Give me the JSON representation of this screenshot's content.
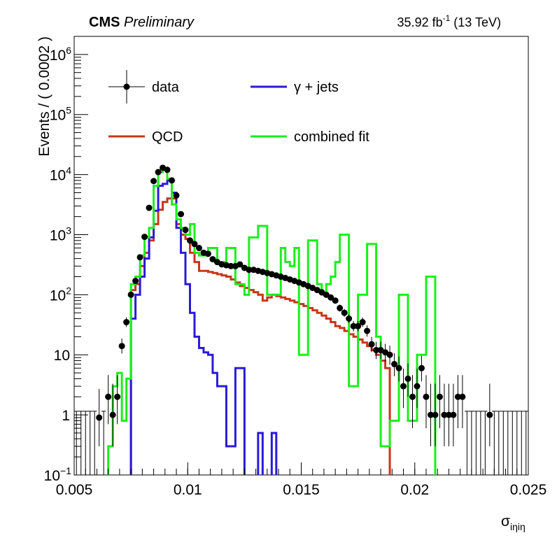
{
  "header": {
    "experiment": "CMS",
    "status": "Preliminary",
    "luminosity": "35.92 fb",
    "lumi_sup": "-1",
    "energy": "(13 TeV)"
  },
  "chart_data": {
    "type": "line",
    "title": "",
    "xlabel": "σ_iηiη",
    "xlabel_main": "σ",
    "xlabel_sub": "iηiη",
    "ylabel": "Events / ( 0.0002 )",
    "xlim": [
      0.005,
      0.025
    ],
    "ylim": [
      0.1,
      2000000
    ],
    "log_y": true,
    "grid": false,
    "legend_position": "top-left",
    "x_ticks": [
      "0.005",
      "0.01",
      "0.015",
      "0.02",
      "0.025"
    ],
    "y_ticks": [
      {
        "base": "10",
        "exp": "−1",
        "value": 0.1
      },
      {
        "base": "1",
        "exp": "",
        "value": 1
      },
      {
        "base": "10",
        "exp": "",
        "value": 10
      },
      {
        "base": "10",
        "exp": "2",
        "value": 100
      },
      {
        "base": "10",
        "exp": "3",
        "value": 1000
      },
      {
        "base": "10",
        "exp": "4",
        "value": 10000
      },
      {
        "base": "10",
        "exp": "5",
        "value": 100000
      },
      {
        "base": "10",
        "exp": "6",
        "value": 1000000
      }
    ],
    "legend": [
      {
        "label": "data",
        "kind": "marker",
        "color": "#000000"
      },
      {
        "label": "γ + jets",
        "kind": "line",
        "color": "#2a1ad6"
      },
      {
        "label": "QCD",
        "kind": "line",
        "color": "#c8361a"
      },
      {
        "label": "combined fit",
        "kind": "line",
        "color": "#19f019"
      }
    ],
    "bin_width": 0.0002,
    "bin_start": 0.005,
    "data_series": {
      "name": "data",
      "x": [
        0.0061,
        0.0065,
        0.0067,
        0.0069,
        0.0071,
        0.0073,
        0.0075,
        0.0077,
        0.0079,
        0.0081,
        0.0083,
        0.0085,
        0.0087,
        0.0089,
        0.0091,
        0.0093,
        0.0095,
        0.0097,
        0.0099,
        0.0101,
        0.0103,
        0.0105,
        0.0107,
        0.0109,
        0.0111,
        0.0113,
        0.0115,
        0.0117,
        0.0119,
        0.0121,
        0.0123,
        0.0125,
        0.0127,
        0.0129,
        0.0131,
        0.0133,
        0.0135,
        0.0137,
        0.0139,
        0.0141,
        0.0143,
        0.0145,
        0.0147,
        0.0149,
        0.0151,
        0.0153,
        0.0155,
        0.0157,
        0.0159,
        0.0161,
        0.0163,
        0.0165,
        0.0167,
        0.0169,
        0.0171,
        0.0173,
        0.0175,
        0.0177,
        0.0179,
        0.0181,
        0.0183,
        0.0185,
        0.0187,
        0.0189,
        0.0191,
        0.0193,
        0.0195,
        0.0197,
        0.0199,
        0.0201,
        0.0203,
        0.0205,
        0.0207,
        0.0209,
        0.0211,
        0.0213,
        0.0215,
        0.0217,
        0.0219,
        0.0221,
        0.0233
      ],
      "y": [
        0.9,
        2,
        1,
        2,
        14,
        35,
        100,
        170,
        420,
        920,
        2800,
        7800,
        11000,
        13000,
        12000,
        8000,
        4500,
        2200,
        1200,
        800,
        700,
        600,
        500,
        480,
        390,
        350,
        320,
        310,
        300,
        300,
        320,
        280,
        260,
        260,
        250,
        240,
        230,
        220,
        210,
        200,
        190,
        180,
        170,
        160,
        150,
        140,
        130,
        120,
        110,
        100,
        90,
        80,
        60,
        50,
        40,
        30,
        30,
        35,
        25,
        15,
        12,
        12,
        11,
        10,
        7,
        6,
        3,
        4,
        2,
        3,
        6,
        2,
        1,
        1,
        2,
        1,
        1,
        1,
        2,
        2,
        1
      ],
      "err_lo": [
        0.6,
        1.3,
        0.7,
        1.3,
        3.5,
        6,
        10,
        13,
        20,
        30,
        53,
        88,
        105,
        114,
        110,
        89,
        67,
        47,
        35,
        28,
        26,
        24,
        22,
        22,
        20,
        19,
        18,
        18,
        17,
        17,
        18,
        17,
        16,
        16,
        16,
        15,
        15,
        15,
        14,
        14,
        14,
        13,
        13,
        13,
        12,
        12,
        11,
        11,
        10,
        10,
        9.5,
        9,
        7.7,
        7,
        6.3,
        5.5,
        5.5,
        5.9,
        5,
        3.9,
        3.5,
        3.5,
        3.3,
        3.2,
        2.6,
        2.4,
        1.7,
        2,
        1.4,
        1.7,
        2.4,
        1.4,
        0.7,
        0.7,
        1.4,
        0.7,
        0.7,
        0.7,
        1.4,
        1.4,
        0.7
      ],
      "err_hi": [
        1.8,
        2.6,
        2.3,
        2.6,
        4.6,
        7,
        11,
        14,
        21,
        31,
        54,
        89,
        106,
        115,
        111,
        90,
        68,
        48,
        36,
        29,
        27,
        25,
        23,
        23,
        21,
        20,
        19,
        19,
        18,
        18,
        19,
        18,
        17,
        17,
        17,
        16,
        16,
        16,
        15,
        15,
        15,
        14,
        14,
        14,
        13,
        13,
        12,
        12,
        11,
        11,
        10.5,
        10,
        8.7,
        8,
        7.3,
        6.5,
        6.5,
        6.9,
        6,
        4.9,
        4.5,
        4.5,
        4.3,
        4.2,
        3.6,
        3.4,
        2.9,
        3.2,
        2.6,
        2.9,
        3.6,
        2.6,
        2.3,
        2.3,
        2.6,
        2.3,
        2.3,
        2.3,
        2.6,
        2.6,
        2.3
      ]
    },
    "empty_bins_x": [
      0.0051,
      0.0053,
      0.0055,
      0.0057,
      0.0059,
      0.0063,
      0.0223,
      0.0225,
      0.0227,
      0.0229,
      0.0231,
      0.0235,
      0.0237,
      0.0239,
      0.0241,
      0.0243,
      0.0245,
      0.0247,
      0.0249
    ],
    "empty_bin_err_hi": 1.15,
    "series": [
      {
        "name": "QCD",
        "color": "#c8361a",
        "values": [
          0,
          0,
          0,
          0,
          0,
          0,
          0,
          0,
          0,
          0,
          0,
          0,
          0,
          0,
          0,
          0,
          0,
          0,
          0,
          0,
          0,
          0,
          0,
          0,
          0,
          0,
          0,
          0,
          0,
          0,
          0,
          0,
          0,
          0,
          0,
          0,
          0,
          0,
          0,
          0,
          0,
          0,
          0,
          0,
          0,
          0,
          0,
          0,
          0,
          0,
          0,
          0,
          0,
          0,
          0,
          0,
          0,
          0,
          0,
          0,
          0,
          0,
          0,
          0,
          0,
          0,
          0,
          0,
          0,
          0,
          0,
          0,
          0,
          0,
          0,
          0,
          0,
          0,
          0,
          0,
          0,
          0,
          0,
          0,
          0,
          0,
          0,
          0,
          0,
          0,
          0,
          0,
          0,
          0,
          0,
          0,
          0,
          0,
          0,
          0
        ],
        "values_sparse": {
          "from": 0.0075,
          "step": 0.0002,
          "y": [
            120,
            150,
            300,
            500,
            800,
            1500,
            2600,
            3500,
            4000,
            4000,
            1500,
            1000,
            850,
            500,
            350,
            250,
            250,
            240,
            230,
            220,
            210,
            200,
            180,
            160,
            140,
            130,
            120,
            110,
            100,
            80,
            90,
            100,
            95,
            90,
            85,
            80,
            75,
            70,
            65,
            60,
            55,
            50,
            45,
            40,
            35,
            30,
            28,
            25,
            22,
            20,
            18,
            16,
            14,
            12,
            10,
            8,
            6
          ]
        }
      },
      {
        "name": "γ + jets",
        "color": "#2a1ad6",
        "values_sparse": {
          "from": 0.0075,
          "step": 0.0002,
          "y": [
            40,
            100,
            200,
            400,
            900,
            2500,
            6500,
            7000,
            8000,
            5000,
            1300,
            500,
            150,
            50,
            20,
            13,
            11,
            10,
            5,
            3,
            3,
            0.3,
            0.3,
            6,
            6,
            0,
            0,
            0,
            0.5,
            0,
            0,
            0.5,
            0,
            0,
            0,
            0
          ]
        }
      },
      {
        "name": "combined fit",
        "color": "#19f019",
        "values_sparse": {
          "from": 0.0065,
          "step": 0.0002,
          "y": [
            0.3,
            3,
            5,
            0.8,
            4,
            150,
            200,
            450,
            900,
            1300,
            6500,
            11000,
            12000,
            8500,
            3200,
            1800,
            1300,
            1000,
            1500,
            500,
            450,
            450,
            600,
            600,
            350,
            350,
            600,
            600,
            150,
            150,
            100,
            900,
            900,
            1400,
            1400,
            100,
            100,
            100,
            600,
            350,
            300,
            600,
            10,
            10,
            800,
            800,
            150,
            100,
            150,
            200,
            350,
            1000,
            1000,
            3,
            3,
            100,
            100,
            700,
            700,
            20,
            0.3,
            0.3,
            0.8,
            0.8,
            100,
            100,
            0.8,
            0.8,
            10,
            10,
            200,
            200,
            0.03
          ]
        }
      }
    ]
  }
}
